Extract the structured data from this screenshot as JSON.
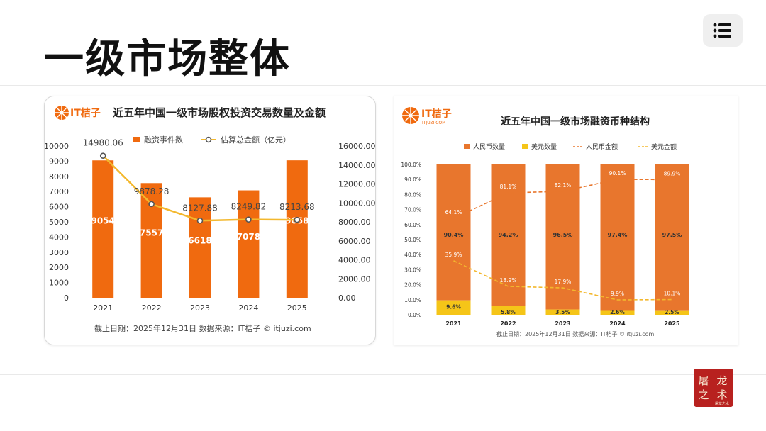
{
  "page": {
    "title": "一级市场整体"
  },
  "brand": {
    "logo_text": "IT桔子",
    "logo_sub": "ITJUZI.COM",
    "seal_text": [
      "屠",
      "龙",
      "之",
      "术"
    ],
    "seal_sub": "屠龙之术"
  },
  "colors": {
    "orange": "#f06a0f",
    "yellow": "#f5c518",
    "dark_orange": "#e8762d",
    "line_yellow": "#f3b82e"
  },
  "chart_data": [
    {
      "type": "bar",
      "title": "近五年中国一级市场股权投资交易数量及金额",
      "categories": [
        "2021",
        "2022",
        "2023",
        "2024",
        "2025"
      ],
      "series": [
        {
          "name": "融资事件数",
          "kind": "bar",
          "axis": "left",
          "values": [
            9054,
            7557,
            6618,
            7078,
            9058
          ],
          "labels": [
            "9054",
            "7557",
            "6618",
            "7078",
            "9058"
          ]
        },
        {
          "name": "估算总金额（亿元）",
          "kind": "line",
          "axis": "right",
          "values": [
            14980.06,
            9878.28,
            8127.88,
            8249.82,
            8213.68
          ],
          "labels": [
            "14980.06",
            "9878.28",
            "8127.88",
            "8249.82",
            "8213.68"
          ]
        }
      ],
      "y_left": {
        "min": 0,
        "max": 10000,
        "ticks": [
          "0",
          "1000",
          "2000",
          "3000",
          "4000",
          "5000",
          "6000",
          "7000",
          "8000",
          "9000",
          "10000"
        ]
      },
      "y_right": {
        "min": 0,
        "max": 16000,
        "ticks": [
          "0.00",
          "2000.00",
          "4000.00",
          "6000.00",
          "8000.00",
          "10000.00",
          "12000.00",
          "14000.00",
          "16000.00"
        ]
      },
      "footnote": "截止日期：2025年12月31日    数据来源：IT桔子 © itjuzi.com"
    },
    {
      "type": "bar",
      "title": "近五年中国一级市场融资币种结构",
      "categories": [
        "2021",
        "2022",
        "2023",
        "2024",
        "2025"
      ],
      "legend": [
        "人民币数量",
        "美元数量",
        "人民币金额",
        "美元金额"
      ],
      "series": [
        {
          "name": "人民币数量",
          "kind": "stacked-bar",
          "values": [
            90.4,
            94.2,
            96.5,
            97.4,
            97.5
          ],
          "labels": [
            "90.4%",
            "94.2%",
            "96.5%",
            "97.4%",
            "97.5%"
          ]
        },
        {
          "name": "美元数量",
          "kind": "stacked-bar",
          "values": [
            9.6,
            5.8,
            3.5,
            2.6,
            2.5
          ],
          "labels": [
            "9.6%",
            "5.8%",
            "3.5%",
            "2.6%",
            "2.5%"
          ]
        },
        {
          "name": "人民币金额",
          "kind": "dashed-line",
          "values": [
            64.1,
            81.1,
            82.1,
            90.1,
            89.9
          ],
          "labels": [
            "64.1%",
            "81.1%",
            "82.1%",
            "90.1%",
            "89.9%"
          ]
        },
        {
          "name": "美元金额",
          "kind": "dashed-line",
          "values": [
            35.9,
            18.9,
            17.9,
            9.9,
            10.1
          ],
          "labels": [
            "35.9%",
            "18.9%",
            "17.9%",
            "9.9%",
            "10.1%"
          ]
        }
      ],
      "y_axis": {
        "min": 0,
        "max": 100,
        "ticks": [
          "0.0%",
          "10.0%",
          "20.0%",
          "30.0%",
          "40.0%",
          "50.0%",
          "60.0%",
          "70.0%",
          "80.0%",
          "90.0%",
          "100.0%"
        ]
      },
      "footnote": "截止日期：2025年12月31日    数据来源：IT桔子 © itjuzi.com"
    }
  ]
}
